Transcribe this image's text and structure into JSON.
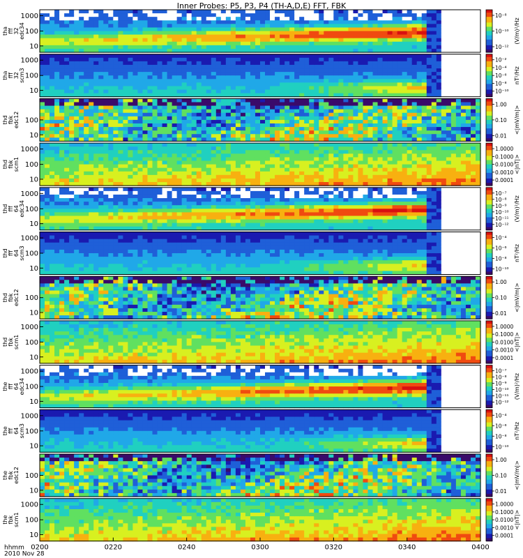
{
  "chart_data": {
    "type": "heatmap",
    "title": "Inner Probes: P5, P3, P4 (TH-A,D,E) FFT, FBK",
    "x_axis": {
      "label_lines": [
        "hhmm",
        "2010 Nov 28"
      ],
      "ticks": [
        "0200",
        "0220",
        "0240",
        "0300",
        "0320",
        "0340",
        "0400"
      ],
      "range": [
        "0200",
        "0400"
      ]
    },
    "panels": [
      {
        "id": "tha-fff32-edc34",
        "probe": "tha",
        "ylabel": [
          "tha",
          "fff",
          "32",
          "edc34"
        ],
        "yticks": [
          "10",
          "100",
          "1000"
        ],
        "yscale": "log",
        "cbar_label": "(V/m)²/Hz",
        "cbar_ticks": [
          "10⁻⁸",
          "10⁻¹⁰",
          "10⁻¹²"
        ],
        "kind": "ffe",
        "data_end": 0.875
      },
      {
        "id": "tha-fff32-scm3",
        "probe": "tha",
        "ylabel": [
          "tha",
          "fff",
          "32",
          "scm3"
        ],
        "yticks": [
          "10",
          "100",
          "1000"
        ],
        "yscale": "log",
        "cbar_label": "nT²/Hz",
        "cbar_ticks": [
          "10⁻²",
          "10⁻⁴",
          "10⁻⁶",
          "10⁻⁸",
          "10⁻¹⁰"
        ],
        "kind": "ffb",
        "data_end": 0.875
      },
      {
        "id": "thd-fbk-edc12",
        "probe": "thd",
        "ylabel": [
          "thd",
          "fbk",
          "edc12"
        ],
        "yticks": [
          "10",
          "100"
        ],
        "yscale": "log",
        "cbar_label": "<|mV/m|>",
        "cbar_ticks": [
          "1.00",
          "0.10",
          "0.01"
        ],
        "kind": "fbe",
        "data_end": 1.0
      },
      {
        "id": "thd-fbk-scm1",
        "probe": "thd",
        "ylabel": [
          "thd",
          "fbk",
          "scm1"
        ],
        "yticks": [
          "10",
          "100",
          "1000"
        ],
        "yscale": "log",
        "cbar_label": "<|nT|>",
        "cbar_ticks": [
          "1.0000",
          "0.1000",
          "0.0100",
          "0.0010",
          "0.0001"
        ],
        "kind": "fbb",
        "data_end": 1.0
      },
      {
        "id": "thd-fff64-edc34",
        "probe": "thd",
        "ylabel": [
          "thd",
          "fff",
          "64",
          "edc34"
        ],
        "yticks": [
          "10",
          "100",
          "1000"
        ],
        "yscale": "log",
        "cbar_label": "(V/m)²/Hz",
        "cbar_ticks": [
          "10⁻⁷",
          "10⁻⁸",
          "10⁻⁹",
          "10⁻¹⁰",
          "10⁻¹¹",
          "10⁻¹²"
        ],
        "kind": "ffe",
        "data_end": 0.875
      },
      {
        "id": "thd-fff64-scm3",
        "probe": "thd",
        "ylabel": [
          "thd",
          "fff",
          "64",
          "scm3"
        ],
        "yticks": [
          "10",
          "100",
          "1000"
        ],
        "yscale": "log",
        "cbar_label": "nT²/Hz",
        "cbar_ticks": [
          "10⁻⁴",
          "10⁻⁶",
          "10⁻⁸",
          "10⁻¹⁰"
        ],
        "kind": "ffb",
        "data_end": 0.875
      },
      {
        "id": "thd-fbk-edc12-b",
        "probe": "thd",
        "ylabel": [
          "thd",
          "fbk",
          "edc12"
        ],
        "yticks": [
          "10",
          "100"
        ],
        "yscale": "log",
        "cbar_label": "<|mV/m|>",
        "cbar_ticks": [
          "1.00",
          "0.10",
          "0.01"
        ],
        "kind": "fbe",
        "data_end": 1.0
      },
      {
        "id": "thd-fbk-scm1-b",
        "probe": "thd",
        "ylabel": [
          "thd",
          "fbk",
          "scm1"
        ],
        "yticks": [
          "10",
          "100",
          "1000"
        ],
        "yscale": "log",
        "cbar_label": "<|nT|>",
        "cbar_ticks": [
          "1.0000",
          "0.1000",
          "0.0100",
          "0.0010",
          "0.0001"
        ],
        "kind": "fbb",
        "data_end": 1.0
      },
      {
        "id": "the-fff64-edc34",
        "probe": "the",
        "ylabel": [
          "the",
          "fff",
          "64",
          "edc34"
        ],
        "yticks": [
          "10",
          "100",
          "1000"
        ],
        "yscale": "log",
        "cbar_label": "(V/m)²/Hz",
        "cbar_ticks": [
          "10⁻⁷",
          "10⁻⁸",
          "10⁻⁹",
          "10⁻¹⁰",
          "10⁻¹¹",
          "10⁻¹²"
        ],
        "kind": "ffe",
        "data_end": 0.875
      },
      {
        "id": "the-fff64-scm3",
        "probe": "the",
        "ylabel": [
          "the",
          "fff",
          "64",
          "scm3"
        ],
        "yticks": [
          "10",
          "100",
          "1000"
        ],
        "yscale": "log",
        "cbar_label": "nT²/Hz",
        "cbar_ticks": [
          "10⁻⁴",
          "10⁻⁶",
          "10⁻⁸",
          "10⁻¹⁰"
        ],
        "kind": "ffb",
        "data_end": 0.875
      },
      {
        "id": "the-fbk-edc12",
        "probe": "the",
        "ylabel": [
          "the",
          "fbk",
          "edc12"
        ],
        "yticks": [
          "10",
          "100"
        ],
        "yscale": "log",
        "cbar_label": "<|mV/m|>",
        "cbar_ticks": [
          "1.00",
          "0.10",
          "0.01"
        ],
        "kind": "fbe",
        "data_end": 1.0
      },
      {
        "id": "the-fbk-scm1",
        "probe": "the",
        "ylabel": [
          "the",
          "fbk",
          "scm1"
        ],
        "yticks": [
          "10",
          "100",
          "1000"
        ],
        "yscale": "log",
        "cbar_label": "<|nT|>",
        "cbar_ticks": [
          "1.0000",
          "0.1000",
          "0.0100",
          "0.0010",
          "0.0001"
        ],
        "kind": "fbb",
        "data_end": 1.0
      }
    ],
    "colormap": [
      "#ffffff",
      "#3a0a6a",
      "#1a1ab0",
      "#1f5fd8",
      "#20a8e8",
      "#20d0c0",
      "#60e060",
      "#d8f020",
      "#f8b010",
      "#f04a10",
      "#d81010"
    ]
  }
}
